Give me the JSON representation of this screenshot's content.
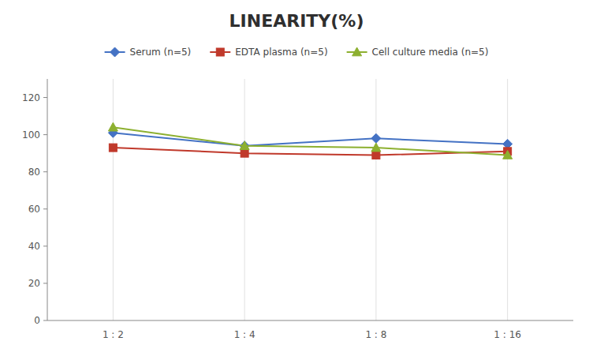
{
  "chart_data": {
    "type": "line",
    "title": "LINEARITY(%)",
    "categories": [
      "1 : 2",
      "1 : 4",
      "1 : 8",
      "1 : 16"
    ],
    "series": [
      {
        "name": "Serum (n=5)",
        "color": "#4472C4",
        "marker": "diamond",
        "values": [
          101,
          94,
          98,
          95
        ]
      },
      {
        "name": "EDTA plasma (n=5)",
        "color": "#C0392B",
        "marker": "square",
        "values": [
          93,
          90,
          89,
          91
        ]
      },
      {
        "name": "Cell culture media (n=5)",
        "color": "#8DB030",
        "marker": "triangle",
        "values": [
          104,
          94,
          93,
          89
        ]
      }
    ],
    "ylim": [
      0,
      130
    ],
    "yticks": [
      0,
      20,
      40,
      60,
      80,
      100,
      120
    ],
    "grid": true,
    "legend": "top"
  }
}
